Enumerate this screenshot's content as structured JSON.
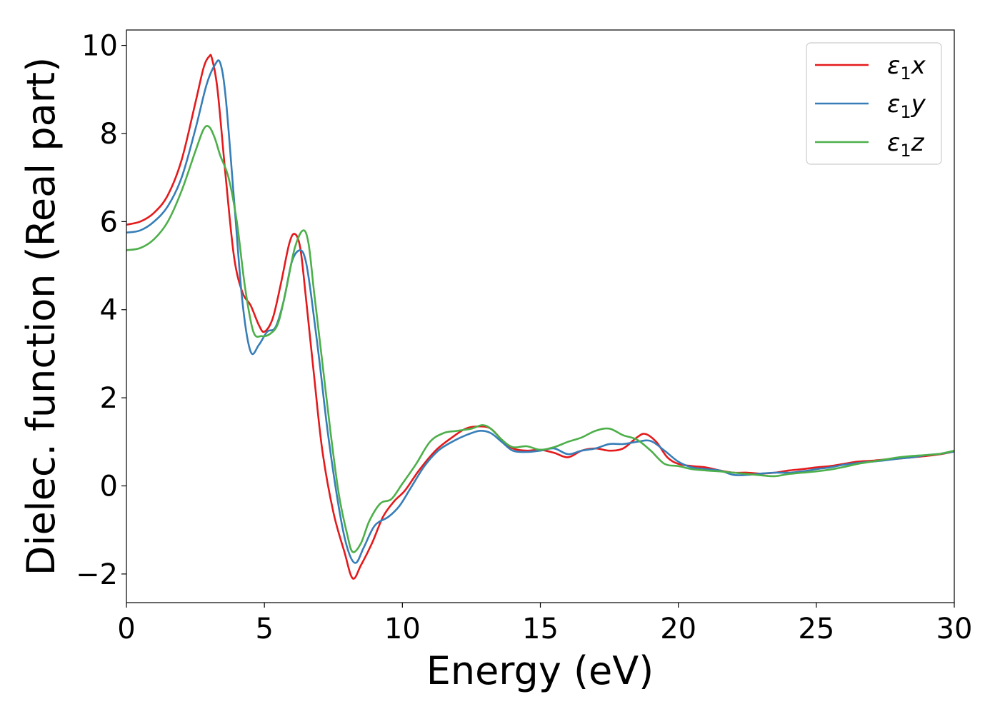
{
  "chart_data": {
    "type": "line",
    "xlabel": "Energy (eV)",
    "ylabel": "Dielec. function (Real part)",
    "xlim": [
      0,
      30
    ],
    "ylim": [
      -2.65,
      10.35
    ],
    "xticks": [
      0,
      5,
      10,
      15,
      20,
      25,
      30
    ],
    "xtick_labels": [
      "0",
      "5",
      "10",
      "15",
      "20",
      "25",
      "30"
    ],
    "yticks": [
      -2,
      0,
      2,
      4,
      6,
      8,
      10
    ],
    "ytick_labels": [
      "−2",
      "0",
      "2",
      "4",
      "6",
      "8",
      "10"
    ],
    "grid": false,
    "legend_position": "top-right",
    "series": [
      {
        "name": "ε₁x",
        "legend_main": "ε",
        "legend_sub": "1",
        "legend_tail": "x",
        "color": "#e41a1c",
        "x": [
          0,
          0.5,
          1.0,
          1.5,
          2.0,
          2.5,
          2.8,
          3.0,
          3.1,
          3.3,
          3.6,
          3.9,
          4.2,
          4.5,
          4.8,
          5.0,
          5.3,
          5.6,
          5.9,
          6.1,
          6.3,
          6.5,
          6.8,
          7.1,
          7.5,
          7.9,
          8.2,
          8.5,
          8.9,
          9.3,
          9.7,
          10.1,
          10.6,
          11.2,
          11.8,
          12.3,
          12.8,
          13.2,
          13.6,
          14.0,
          14.5,
          15.0,
          15.5,
          16.0,
          16.5,
          17.0,
          17.5,
          18.0,
          18.5,
          18.8,
          19.2,
          19.6,
          20.0,
          20.5,
          21.0,
          21.5,
          22.0,
          22.5,
          23.0,
          23.5,
          24.0,
          24.5,
          25.0,
          25.5,
          26.0,
          26.5,
          27.0,
          27.5,
          28.0,
          28.5,
          29.0,
          29.5,
          30.0
        ],
        "y": [
          5.93,
          6.0,
          6.2,
          6.6,
          7.4,
          8.7,
          9.5,
          9.75,
          9.7,
          9.0,
          7.0,
          5.2,
          4.4,
          4.1,
          3.65,
          3.5,
          3.8,
          4.6,
          5.5,
          5.72,
          5.4,
          4.3,
          2.5,
          0.8,
          -0.6,
          -1.5,
          -2.1,
          -1.8,
          -1.3,
          -0.7,
          -0.35,
          -0.1,
          0.35,
          0.8,
          1.1,
          1.3,
          1.35,
          1.3,
          1.05,
          0.85,
          0.8,
          0.82,
          0.75,
          0.65,
          0.8,
          0.85,
          0.8,
          0.85,
          1.1,
          1.18,
          1.0,
          0.65,
          0.5,
          0.45,
          0.42,
          0.35,
          0.3,
          0.3,
          0.28,
          0.3,
          0.35,
          0.38,
          0.42,
          0.45,
          0.5,
          0.55,
          0.57,
          0.6,
          0.62,
          0.65,
          0.68,
          0.72,
          0.78
        ]
      },
      {
        "name": "ε₁y",
        "legend_main": "ε",
        "legend_sub": "1",
        "legend_tail": "y",
        "color": "#377eb8",
        "x": [
          0,
          0.5,
          1.0,
          1.5,
          2.0,
          2.5,
          2.9,
          3.2,
          3.4,
          3.6,
          3.9,
          4.2,
          4.5,
          4.8,
          5.1,
          5.4,
          5.7,
          6.0,
          6.3,
          6.5,
          6.7,
          7.0,
          7.3,
          7.7,
          8.0,
          8.3,
          8.6,
          9.0,
          9.5,
          9.9,
          10.3,
          10.8,
          11.3,
          11.8,
          12.3,
          12.8,
          13.2,
          13.6,
          14.0,
          14.5,
          15.0,
          15.5,
          16.0,
          16.5,
          17.0,
          17.5,
          18.0,
          18.5,
          19.0,
          19.5,
          20.0,
          20.5,
          21.0,
          21.5,
          22.0,
          22.5,
          23.0,
          23.5,
          24.0,
          24.5,
          25.0,
          25.5,
          26.0,
          26.5,
          27.0,
          27.5,
          28.0,
          28.5,
          29.0,
          29.5,
          30.0
        ],
        "y": [
          5.75,
          5.8,
          6.0,
          6.35,
          7.0,
          8.1,
          9.1,
          9.55,
          9.6,
          8.8,
          6.5,
          4.2,
          3.05,
          3.2,
          3.5,
          3.6,
          4.2,
          5.1,
          5.35,
          5.1,
          4.3,
          2.8,
          1.2,
          -0.5,
          -1.4,
          -1.75,
          -1.4,
          -0.9,
          -0.7,
          -0.45,
          -0.05,
          0.45,
          0.8,
          1.0,
          1.15,
          1.25,
          1.2,
          1.0,
          0.8,
          0.77,
          0.8,
          0.85,
          0.72,
          0.8,
          0.85,
          0.95,
          0.95,
          1.0,
          1.02,
          0.8,
          0.55,
          0.42,
          0.38,
          0.35,
          0.25,
          0.25,
          0.28,
          0.3,
          0.3,
          0.33,
          0.38,
          0.42,
          0.48,
          0.52,
          0.55,
          0.58,
          0.62,
          0.65,
          0.7,
          0.73,
          0.78
        ]
      },
      {
        "name": "ε₁z",
        "legend_main": "ε",
        "legend_sub": "1",
        "legend_tail": "z",
        "color": "#4daf4a",
        "x": [
          0,
          0.5,
          1.0,
          1.5,
          2.0,
          2.5,
          2.8,
          3.0,
          3.2,
          3.4,
          3.7,
          4.0,
          4.3,
          4.6,
          4.9,
          5.2,
          5.5,
          5.8,
          6.1,
          6.4,
          6.6,
          6.8,
          7.1,
          7.4,
          7.7,
          8.0,
          8.2,
          8.5,
          8.8,
          9.2,
          9.6,
          10.0,
          10.5,
          11.0,
          11.5,
          12.0,
          12.5,
          12.9,
          13.2,
          13.6,
          14.0,
          14.5,
          15.0,
          15.5,
          16.0,
          16.5,
          17.0,
          17.5,
          18.0,
          18.5,
          19.0,
          19.5,
          20.0,
          20.5,
          21.0,
          21.5,
          22.0,
          22.5,
          23.0,
          23.5,
          24.0,
          24.5,
          25.0,
          25.5,
          26.0,
          26.5,
          27.0,
          27.5,
          28.0,
          28.5,
          29.0,
          29.5,
          30.0
        ],
        "y": [
          5.35,
          5.4,
          5.6,
          6.0,
          6.7,
          7.6,
          8.1,
          8.15,
          7.9,
          7.5,
          7.0,
          6.0,
          4.5,
          3.5,
          3.4,
          3.45,
          3.7,
          4.5,
          5.4,
          5.8,
          5.5,
          4.4,
          2.8,
          1.2,
          -0.2,
          -1.1,
          -1.5,
          -1.3,
          -0.8,
          -0.4,
          -0.3,
          0.05,
          0.5,
          1.0,
          1.2,
          1.25,
          1.3,
          1.38,
          1.3,
          1.05,
          0.88,
          0.9,
          0.82,
          0.88,
          1.0,
          1.1,
          1.25,
          1.3,
          1.15,
          1.05,
          0.8,
          0.5,
          0.45,
          0.38,
          0.35,
          0.33,
          0.3,
          0.27,
          0.24,
          0.22,
          0.27,
          0.3,
          0.33,
          0.37,
          0.43,
          0.5,
          0.55,
          0.6,
          0.65,
          0.68,
          0.7,
          0.73,
          0.8
        ]
      }
    ]
  }
}
